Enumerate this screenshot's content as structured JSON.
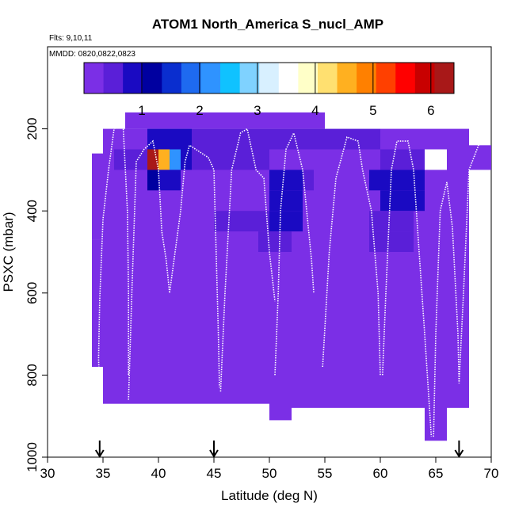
{
  "chart_data": {
    "type": "heatmap",
    "title": "ATOM1 North_America S_nucl_AMP",
    "note_flights": "Flts: 9,10,11",
    "note_dates": "MMDD: 0820,0822,0823",
    "xlabel": "Latitude (deg N)",
    "ylabel": "PSXC (mbar)",
    "xlim": [
      30,
      70
    ],
    "ylim": [
      1000,
      0
    ],
    "x_ticks": [
      "30",
      "35",
      "40",
      "45",
      "50",
      "55",
      "60",
      "65",
      "70"
    ],
    "y_ticks": [
      "200",
      "400",
      "600",
      "800",
      "1000"
    ],
    "colorbar": {
      "range": [
        0,
        6.4
      ],
      "ticks": [
        "1",
        "2",
        "3",
        "4",
        "5",
        "6"
      ],
      "colors": [
        "#7B2FE6",
        "#5A1FD8",
        "#1A0AC2",
        "#0000A0",
        "#0A2ECF",
        "#1E6AF0",
        "#2F93FF",
        "#10C2FF",
        "#7FD2FF",
        "#D8F0FF",
        "#FFFFFF",
        "#FFFFC8",
        "#FFE070",
        "#FFB020",
        "#FF8000",
        "#FF4000",
        "#FF0000",
        "#C80000",
        "#A81818"
      ]
    },
    "arrows_latitude": [
      34.7,
      45,
      67.1
    ],
    "cells": [
      {
        "lat": 37,
        "lat2": 55,
        "p1": 160,
        "p2": 200,
        "v": 0.1
      },
      {
        "lat": 37,
        "lat2": 39,
        "p1": 200,
        "p2": 250,
        "v": 0.3
      },
      {
        "lat": 39,
        "lat2": 43,
        "p1": 200,
        "p2": 250,
        "v": 0.9
      },
      {
        "lat": 43,
        "lat2": 50,
        "p1": 200,
        "p2": 250,
        "v": 0.6
      },
      {
        "lat": 50,
        "lat2": 60,
        "p1": 200,
        "p2": 250,
        "v": 0.5
      },
      {
        "lat": 60,
        "lat2": 68,
        "p1": 200,
        "p2": 250,
        "v": 0.2
      },
      {
        "lat": 36,
        "lat2": 39,
        "p1": 250,
        "p2": 300,
        "v": 0.5
      },
      {
        "lat": 39,
        "lat2": 40,
        "p1": 250,
        "p2": 300,
        "v": 6.2
      },
      {
        "lat": 40,
        "lat2": 41,
        "p1": 250,
        "p2": 300,
        "v": 4.6
      },
      {
        "lat": 41,
        "lat2": 42,
        "p1": 250,
        "p2": 300,
        "v": 2.1
      },
      {
        "lat": 42,
        "lat2": 43,
        "p1": 250,
        "p2": 300,
        "v": 0.9
      },
      {
        "lat": 43,
        "lat2": 46,
        "p1": 250,
        "p2": 300,
        "v": 0.6
      },
      {
        "lat": 46,
        "lat2": 50,
        "p1": 250,
        "p2": 300,
        "v": 0.4
      },
      {
        "lat": 60,
        "lat2": 64,
        "p1": 250,
        "p2": 300,
        "v": 0.5
      },
      {
        "lat": 39,
        "lat2": 40,
        "p1": 300,
        "p2": 350,
        "v": 1.3
      },
      {
        "lat": 40,
        "lat2": 41,
        "p1": 300,
        "p2": 350,
        "v": 0.9
      },
      {
        "lat": 41,
        "lat2": 42,
        "p1": 300,
        "p2": 350,
        "v": 1.0
      },
      {
        "lat": 50,
        "lat2": 53,
        "p1": 300,
        "p2": 350,
        "v": 0.9
      },
      {
        "lat": 53,
        "lat2": 54,
        "p1": 300,
        "p2": 350,
        "v": 0.6
      },
      {
        "lat": 59,
        "lat2": 64,
        "p1": 300,
        "p2": 350,
        "v": 0.8
      },
      {
        "lat": 50,
        "lat2": 53,
        "p1": 350,
        "p2": 400,
        "v": 1.0
      },
      {
        "lat": 60,
        "lat2": 64,
        "p1": 350,
        "p2": 400,
        "v": 0.9
      },
      {
        "lat": 50,
        "lat2": 53,
        "p1": 400,
        "p2": 450,
        "v": 0.9
      },
      {
        "lat": 59,
        "lat2": 63,
        "p1": 400,
        "p2": 450,
        "v": 0.6
      },
      {
        "lat": 45,
        "lat2": 50,
        "p1": 400,
        "p2": 450,
        "v": 0.4
      },
      {
        "lat": 49,
        "lat2": 52,
        "p1": 450,
        "p2": 500,
        "v": 0.4
      },
      {
        "lat": 59,
        "lat2": 63,
        "p1": 450,
        "p2": 500,
        "v": 0.4
      }
    ],
    "profiles": [
      [
        [
          34.7,
          840
        ],
        [
          34.6,
          760
        ],
        [
          34.7,
          620
        ],
        [
          35.0,
          420
        ],
        [
          35.5,
          300
        ],
        [
          36.0,
          200
        ],
        [
          36.8,
          185
        ],
        [
          37.2,
          400
        ],
        [
          37.3,
          600
        ],
        [
          37.3,
          800
        ]
      ],
      [
        [
          37.3,
          860
        ],
        [
          37.6,
          600
        ],
        [
          38.0,
          280
        ],
        [
          38.7,
          250
        ],
        [
          39.5,
          230
        ],
        [
          40.0,
          300
        ],
        [
          40.3,
          450
        ],
        [
          40.7,
          520
        ],
        [
          41.0,
          600
        ],
        [
          41.5,
          500
        ],
        [
          42.0,
          400
        ],
        [
          42.4,
          280
        ],
        [
          42.8,
          240
        ],
        [
          44.5,
          270
        ],
        [
          45.0,
          300
        ],
        [
          45.2,
          500
        ],
        [
          45.4,
          700
        ],
        [
          45.5,
          830
        ]
      ],
      [
        [
          45.6,
          840
        ],
        [
          46.0,
          600
        ],
        [
          46.6,
          300
        ],
        [
          47.4,
          210
        ],
        [
          48.0,
          200
        ],
        [
          48.8,
          300
        ],
        [
          49.5,
          320
        ],
        [
          50.0,
          500
        ],
        [
          50.5,
          620
        ]
      ],
      [
        [
          50.5,
          800
        ],
        [
          50.8,
          600
        ],
        [
          51.0,
          400
        ],
        [
          51.5,
          250
        ],
        [
          52.2,
          210
        ],
        [
          53.0,
          300
        ],
        [
          53.8,
          520
        ],
        [
          54.0,
          600
        ]
      ],
      [
        [
          54.8,
          780
        ],
        [
          55.4,
          500
        ],
        [
          56.0,
          320
        ],
        [
          57.0,
          220
        ],
        [
          58.0,
          230
        ],
        [
          58.4,
          300
        ],
        [
          59.2,
          400
        ],
        [
          59.8,
          600
        ],
        [
          60.0,
          800
        ]
      ],
      [
        [
          60.2,
          800
        ],
        [
          60.5,
          600
        ],
        [
          61.0,
          300
        ],
        [
          61.5,
          230
        ],
        [
          62.5,
          230
        ],
        [
          63.0,
          300
        ],
        [
          63.5,
          500
        ],
        [
          64.0,
          700
        ],
        [
          64.6,
          950
        ]
      ],
      [
        [
          64.8,
          950
        ],
        [
          65.0,
          700
        ],
        [
          65.4,
          400
        ],
        [
          66.0,
          330
        ],
        [
          66.5,
          440
        ],
        [
          67.0,
          700
        ],
        [
          67.1,
          820
        ],
        [
          67.5,
          600
        ],
        [
          68.0,
          300
        ],
        [
          69.0,
          230
        ],
        [
          70.0,
          210
        ]
      ]
    ]
  }
}
